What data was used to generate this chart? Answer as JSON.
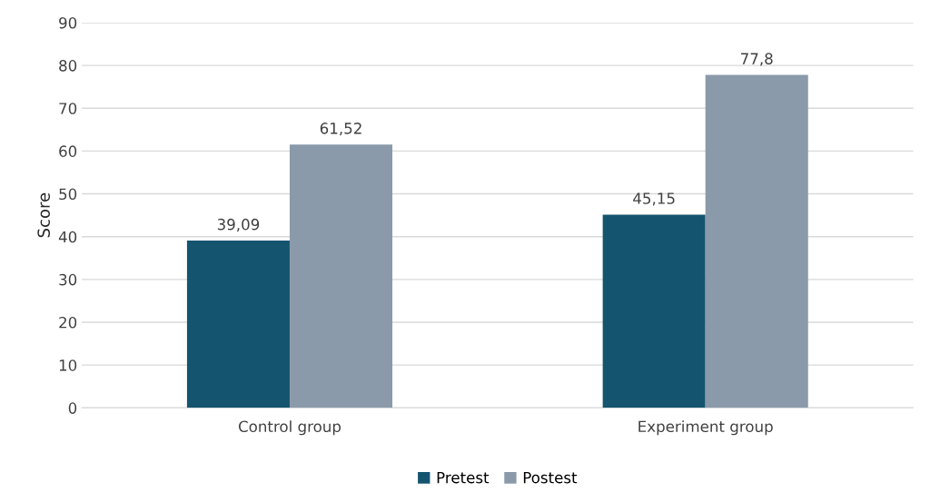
{
  "chart_data": {
    "type": "bar",
    "ylabel": "Score",
    "categories": [
      "Control group",
      "Experiment group"
    ],
    "series": [
      {
        "name": "Pretest",
        "color": "#15546f",
        "values": [
          39.09,
          45.15
        ],
        "value_labels": [
          "39,09",
          "45,15"
        ]
      },
      {
        "name": "Postest",
        "color": "#8a9aaa",
        "values": [
          61.52,
          77.8
        ],
        "value_labels": [
          "61,52",
          "77,8"
        ]
      }
    ],
    "ylim": [
      0,
      90
    ],
    "yticks": [
      0,
      10,
      20,
      30,
      40,
      50,
      60,
      70,
      80,
      90
    ],
    "grid": "y",
    "legend": "bottom"
  }
}
